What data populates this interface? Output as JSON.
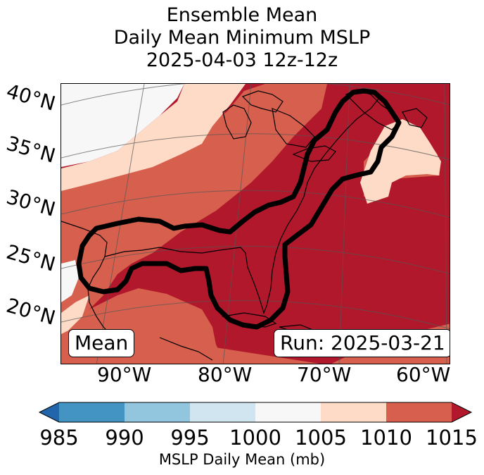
{
  "title": {
    "line1": "Ensemble Mean",
    "line2": "Daily Mean Minimum MSLP",
    "line3": "2025-04-03 12z-12z"
  },
  "map": {
    "lat_labels": [
      "40°N",
      "35°N",
      "30°N",
      "25°N",
      "20°N"
    ],
    "lon_labels": [
      "90°W",
      "80°W",
      "70°W",
      "60°W"
    ],
    "mode_label": "Mean",
    "run_label": "Run: 2025-03-21",
    "contour_color": "#000000"
  },
  "colorbar": {
    "label": "MSLP Daily Mean (mb)",
    "ticks": [
      "985",
      "990",
      "995",
      "1000",
      "1005",
      "1010",
      "1015"
    ],
    "bins": [
      {
        "range": "985-990",
        "color": "#4393c3"
      },
      {
        "range": "990-995",
        "color": "#92c5de"
      },
      {
        "range": "995-1000",
        "color": "#d1e5f0"
      },
      {
        "range": "1000-1005",
        "color": "#f7f7f7"
      },
      {
        "range": "1005-1010",
        "color": "#fddbc7"
      },
      {
        "range": "1010-1015",
        "color": "#d6604d"
      }
    ],
    "under_color": "#2166ac",
    "over_color": "#b2182b"
  },
  "fill_colors": {
    "very_low": "#f7f7f7",
    "low": "#fddbc7",
    "mid": "#d6604d",
    "high": "#b2182b"
  }
}
